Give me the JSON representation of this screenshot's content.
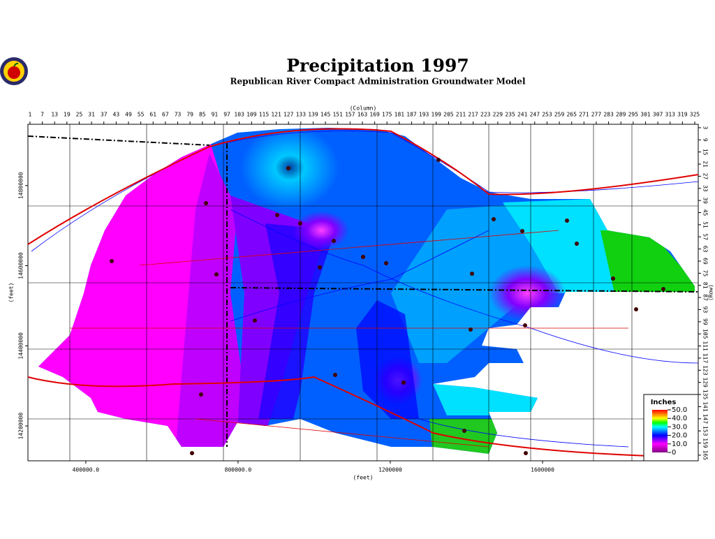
{
  "title": "Precipitation 1997",
  "subtitle": "Republican River Compact Administration Groundwater Model",
  "map": {
    "column_axis": {
      "label": "(Column)",
      "lim": [
        0,
        326.7
      ],
      "ticks": [
        1,
        7,
        13,
        19,
        25,
        31,
        37,
        43,
        49,
        55,
        61,
        67,
        73,
        79,
        85,
        91,
        97,
        103,
        109,
        115,
        121,
        127,
        133,
        139,
        145,
        151,
        157,
        163,
        169,
        175,
        181,
        187,
        193,
        199,
        205,
        211,
        217,
        223,
        229,
        235,
        241,
        247,
        253,
        259,
        265,
        271,
        277,
        283,
        289,
        295,
        301,
        307,
        313,
        319,
        325
      ]
    },
    "row_axis": {
      "label": "(Row)",
      "lim": [
        1.3,
        167.8
      ],
      "ticks": [
        3,
        9,
        15,
        21,
        27,
        33,
        39,
        45,
        51,
        57,
        63,
        69,
        75,
        81,
        87,
        93,
        99,
        105,
        111,
        117,
        123,
        129,
        135,
        141,
        147,
        153,
        159,
        165
      ]
    },
    "x_axis": {
      "label": "(feet)",
      "lim": [
        248000,
        2009000
      ],
      "ticks": [
        {
          "value": 400000,
          "label": "400000.0"
        },
        {
          "value": 800000,
          "label": "800000.0"
        },
        1200000,
        1600000
      ]
    },
    "y_axis": {
      "label": "(feet)",
      "lim": [
        14113000,
        14953000
      ],
      "ticks": [
        14200000,
        14400000,
        14600000,
        14800000
      ]
    },
    "legend": {
      "title": "Inches",
      "lim": [
        0,
        50
      ],
      "ticks": [
        {
          "value": 50,
          "label": "50.0"
        },
        {
          "value": 40,
          "label": "40.0"
        },
        {
          "value": 30,
          "label": "30.0"
        },
        {
          "value": 20,
          "label": "20.0"
        },
        {
          "value": 10,
          "label": "10.0"
        },
        0
      ]
    }
  }
}
